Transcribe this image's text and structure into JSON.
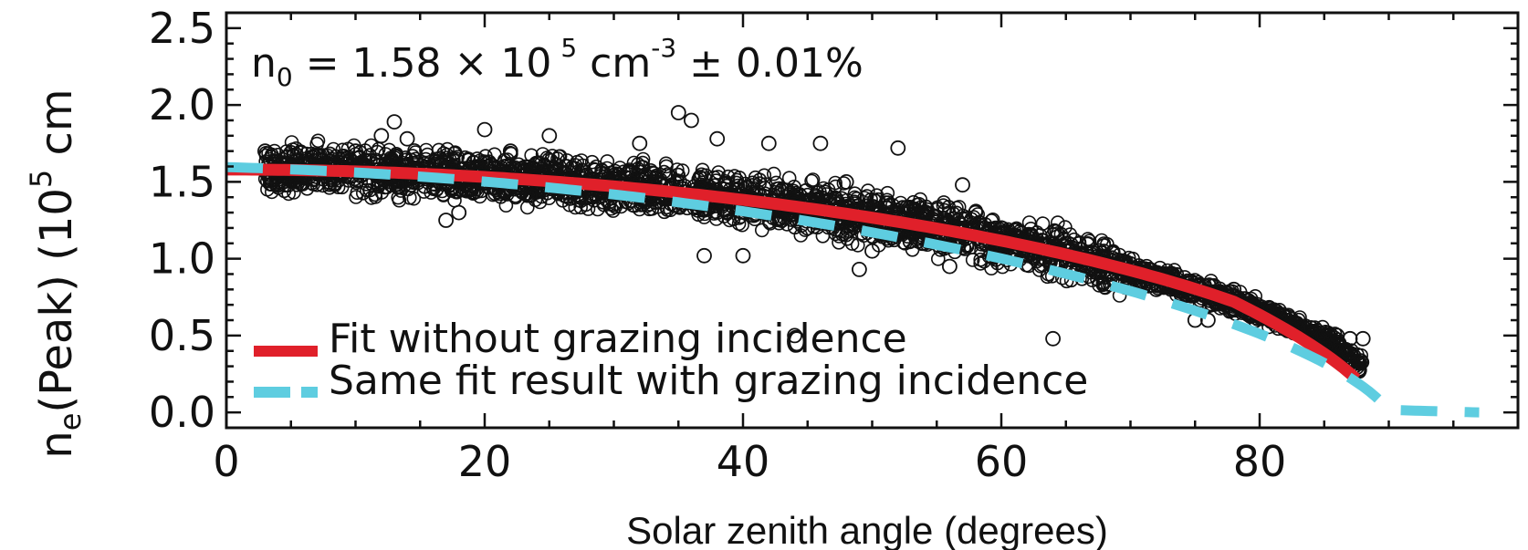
{
  "chart_data": {
    "type": "scatter",
    "title": "",
    "xlabel": "Solar zenith angle (degrees)",
    "ylabel": {
      "n": "n",
      "n_sub": "e",
      "peak": "(Peak) (10",
      "sup": "5",
      "unit": " cm"
    },
    "xlim": [
      0,
      100
    ],
    "ylim": [
      -0.1,
      2.6
    ],
    "x_ticks": [
      0,
      20,
      40,
      60,
      80
    ],
    "y_ticks": [
      0.0,
      0.5,
      1.0,
      1.5,
      2.0,
      2.5
    ],
    "y_tick_labels": [
      "0.0",
      "0.5",
      "1.0",
      "1.5",
      "2.0",
      "2.5"
    ],
    "annotation": {
      "prefix": "n",
      "sub": "0",
      "eq": " = 1.58 × 10",
      "exp": "5",
      "unit": " cm",
      "unit_exp": "-3",
      "suffix": " ± 0.01%"
    },
    "model": {
      "n0": 1.58,
      "form": "chapman_sqrt_cos"
    },
    "series": [
      {
        "name": "Fit without grazing incidence",
        "kind": "line",
        "color": "#e0202a",
        "x_range": [
          0,
          87.5
        ]
      },
      {
        "name": "Same fit result with grazing incidence",
        "kind": "dashed-line",
        "color": "#5ecde0",
        "x_range": [
          0,
          97
        ]
      },
      {
        "kind": "scatter-open-circles",
        "color": "#111111",
        "points": [
          [
            3,
            1.7
          ],
          [
            5,
            1.69
          ],
          [
            8,
            1.68
          ],
          [
            10,
            1.7
          ],
          [
            12,
            1.8
          ],
          [
            13,
            1.89
          ],
          [
            14,
            1.78
          ],
          [
            17,
            1.25
          ],
          [
            18,
            1.3
          ],
          [
            20,
            1.84
          ],
          [
            22,
            1.7
          ],
          [
            24,
            1.62
          ],
          [
            25,
            1.8
          ],
          [
            27,
            1.45
          ],
          [
            30,
            1.5
          ],
          [
            32,
            1.75
          ],
          [
            34,
            1.4
          ],
          [
            35,
            1.95
          ],
          [
            36,
            1.9
          ],
          [
            37,
            1.02
          ],
          [
            38,
            1.78
          ],
          [
            40,
            1.02
          ],
          [
            42,
            1.75
          ],
          [
            43,
            1.25
          ],
          [
            44,
            0.5
          ],
          [
            45,
            1.2
          ],
          [
            46,
            1.75
          ],
          [
            48,
            1.5
          ],
          [
            49,
            0.93
          ],
          [
            50,
            1.05
          ],
          [
            52,
            1.72
          ],
          [
            54,
            1.1
          ],
          [
            56,
            0.95
          ],
          [
            57,
            1.48
          ],
          [
            58,
            1.3
          ],
          [
            60,
            1.2
          ],
          [
            62,
            1.05
          ],
          [
            63,
            1.0
          ],
          [
            64,
            0.48
          ],
          [
            65,
            1.05
          ],
          [
            67,
            1.0
          ],
          [
            68,
            0.95
          ],
          [
            70,
            0.9
          ],
          [
            72,
            0.8
          ],
          [
            74,
            0.75
          ],
          [
            75,
            0.6
          ],
          [
            76,
            0.6
          ],
          [
            78,
            0.8
          ],
          [
            80,
            0.62
          ],
          [
            82,
            0.55
          ],
          [
            84,
            0.55
          ],
          [
            85,
            0.5
          ],
          [
            86,
            0.5
          ],
          [
            87,
            0.48
          ],
          [
            88,
            0.48
          ]
        ]
      }
    ],
    "legend_position": "bottom-left",
    "grid": false
  }
}
